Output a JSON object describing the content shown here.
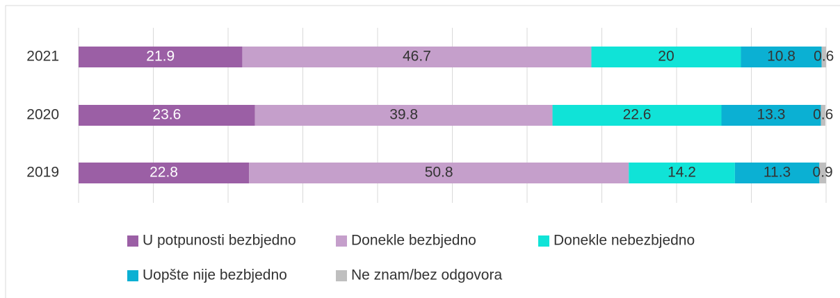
{
  "chart_data": {
    "type": "stacked-bar-horizontal",
    "categories": [
      "2021",
      "2020",
      "2019"
    ],
    "series": [
      {
        "name": "U potpunosti bezbjedno",
        "color": "#9b5fa5",
        "values": [
          21.9,
          23.6,
          22.8
        ]
      },
      {
        "name": "Donekle bezbjedno",
        "color": "#c59fcb",
        "values": [
          46.7,
          39.8,
          50.8
        ]
      },
      {
        "name": "Donekle nebezbjedno",
        "color": "#10e3d7",
        "values": [
          20.0,
          22.6,
          14.2
        ]
      },
      {
        "name": "Uopšte nije bezbjedno",
        "color": "#0bb0d3",
        "values": [
          10.8,
          13.3,
          11.3
        ]
      },
      {
        "name": "Ne znam/bez odgovora",
        "color": "#bfbfbf",
        "values": [
          0.6,
          0.6,
          0.9
        ]
      }
    ],
    "xlim": [
      0,
      100
    ],
    "xticks": [
      0,
      10,
      20,
      30,
      40,
      50,
      60,
      70,
      80,
      90,
      100
    ],
    "grid": true
  }
}
